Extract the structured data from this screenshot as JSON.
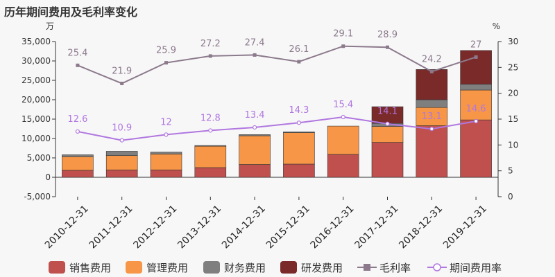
{
  "title": "历年期间费用及毛利率变化",
  "chart_data": {
    "type": "bar",
    "stacked": true,
    "categories": [
      "2010-12-31",
      "2011-12-31",
      "2012-12-31",
      "2013-12-31",
      "2014-12-31",
      "2015-12-31",
      "2016-12-31",
      "2017-12-31",
      "2018-12-31",
      "2019-12-31"
    ],
    "left_axis": {
      "unit": "万",
      "ylim": [
        -5000,
        35000
      ],
      "ticks": [
        "-5,000",
        "0",
        "5,000",
        "10,000",
        "15,000",
        "20,000",
        "25,000",
        "30,000",
        "35,000"
      ]
    },
    "right_axis": {
      "unit": "%",
      "ylim": [
        0,
        30
      ],
      "ticks": [
        "0",
        "5",
        "10",
        "15",
        "20",
        "25",
        "30"
      ]
    },
    "series": [
      {
        "name": "销售费用",
        "kind": "bar",
        "color": "#c0504d",
        "values": [
          1800,
          1900,
          1900,
          2500,
          3300,
          3400,
          5900,
          9000,
          13300,
          14800
        ]
      },
      {
        "name": "管理费用",
        "kind": "bar",
        "color": "#f79646",
        "values": [
          3500,
          3700,
          4100,
          5500,
          7400,
          8100,
          7300,
          4100,
          4700,
          7700
        ]
      },
      {
        "name": "财务费用",
        "kind": "bar",
        "color": "#7f7f7f",
        "values": [
          500,
          1100,
          500,
          200,
          300,
          200,
          0,
          800,
          2000,
          1500
        ]
      },
      {
        "name": "研发费用",
        "kind": "bar",
        "color": "#7b2a2a",
        "values": [
          0,
          0,
          0,
          0,
          0,
          0,
          0,
          4300,
          7800,
          8700
        ]
      },
      {
        "name": "毛利率",
        "kind": "line",
        "axis": "right",
        "color": "#8c7a8c",
        "values": [
          25.4,
          21.9,
          25.9,
          27.2,
          27.4,
          26.1,
          29.1,
          28.9,
          24.2,
          27
        ],
        "labels": [
          "25.4",
          "21.9",
          "25.9",
          "27.2",
          "27.4",
          "26.1",
          "29.1",
          "28.9",
          "24.2",
          "27"
        ]
      },
      {
        "name": "期间费用率",
        "kind": "line",
        "axis": "right",
        "color": "#b077e0",
        "values": [
          12.6,
          10.9,
          12,
          12.8,
          13.4,
          14.3,
          15.4,
          14.1,
          13.1,
          14.6
        ],
        "labels": [
          "12.6",
          "10.9",
          "12",
          "12.8",
          "13.4",
          "14.3",
          "15.4",
          "14.1",
          "13.1",
          "14.6"
        ]
      }
    ],
    "legend_placement": "bottom",
    "grid": false
  }
}
